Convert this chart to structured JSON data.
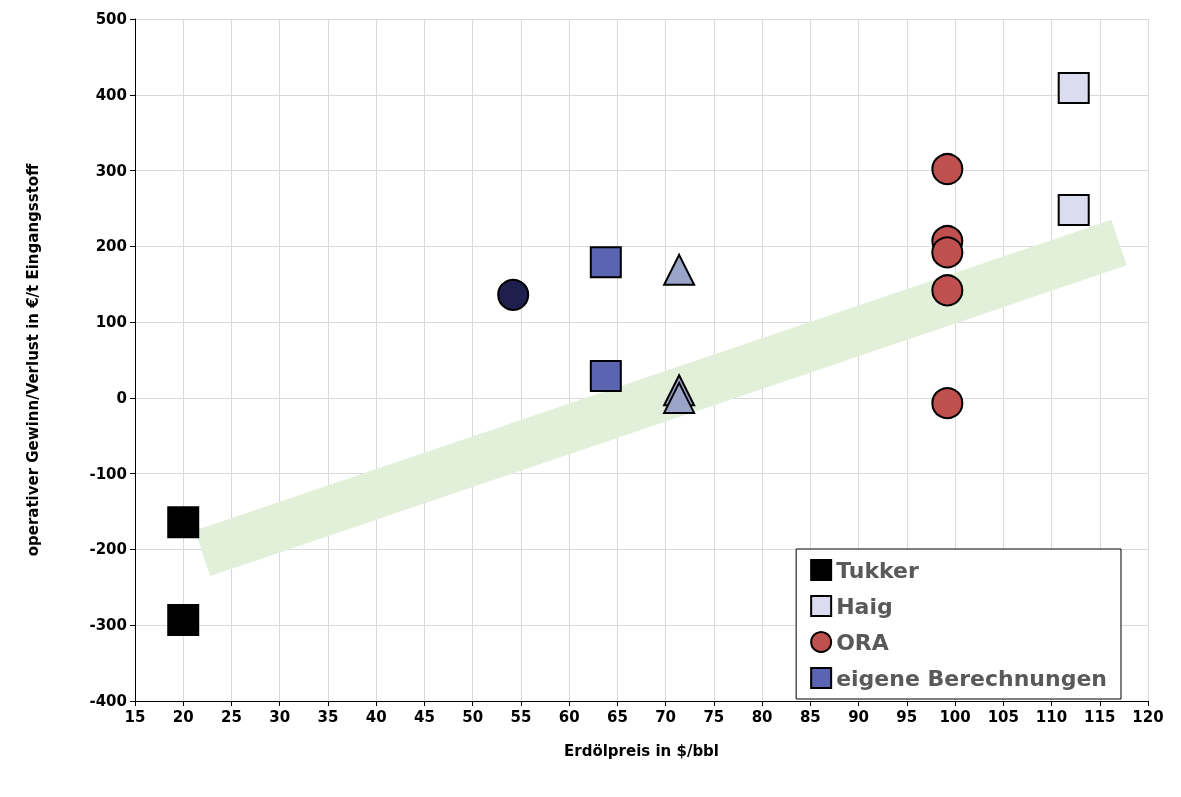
{
  "chart_data": {
    "type": "scatter",
    "xlabel": "Erdölpreis in $/bbl",
    "ylabel": "operativer Gewinn/Verlust in €/t Eingangsstoff",
    "xlim": [
      15,
      120
    ],
    "xticks": [
      15,
      20,
      25,
      30,
      35,
      40,
      45,
      50,
      55,
      60,
      65,
      70,
      75,
      80,
      85,
      90,
      95,
      100,
      105,
      110,
      115,
      120
    ],
    "ylim": [
      -400,
      500
    ],
    "yticks": [
      -400,
      -300,
      -200,
      -100,
      0,
      100,
      200,
      300,
      400,
      500
    ],
    "grid": true,
    "legend": "bottom right",
    "series": [
      {
        "type": "line",
        "color": "#e2efd9",
        "x": [
          22,
          117
        ],
        "values": [
          -205,
          205
        ]
      },
      {
        "name": "Tukker",
        "color": "#000000",
        "marker": "square",
        "x": [
          20,
          20
        ],
        "values": [
          -164,
          -293
        ]
      },
      {
        "name": "Haig",
        "color": "#dcdcf0",
        "marker": "square",
        "x": [
          112.3,
          112.3
        ],
        "values": [
          409,
          248
        ]
      },
      {
        "name": "ORA",
        "color": "#c0504d",
        "marker": "circle",
        "x": [
          99.2,
          99.2,
          99.2,
          99.2,
          99.2
        ],
        "values": [
          302,
          207,
          192,
          142,
          -7
        ]
      },
      {
        "color": "#1f1f4d",
        "marker": "circle",
        "x": [
          54.2
        ],
        "values": [
          136
        ]
      },
      {
        "color": "#9aa3c8",
        "marker": "triangle",
        "x": [
          71.4,
          71.4,
          71.4
        ],
        "values": [
          169,
          10,
          0
        ]
      },
      {
        "name": "eigene Berechnungen",
        "color": "#5b64b0",
        "marker": "square",
        "x": [
          63.8,
          63.8
        ],
        "values": [
          179,
          29
        ]
      }
    ]
  }
}
